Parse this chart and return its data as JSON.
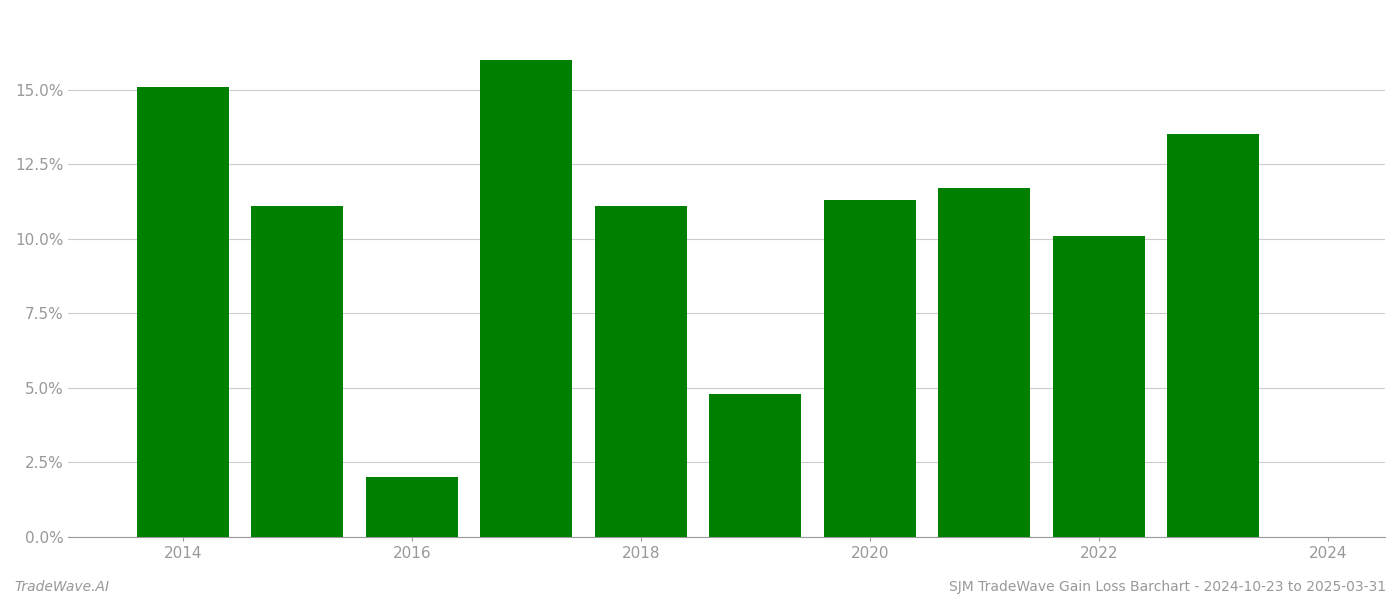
{
  "years": [
    2014,
    2015,
    2016,
    2017,
    2018,
    2019,
    2020,
    2021,
    2022,
    2023
  ],
  "values": [
    0.151,
    0.111,
    0.02,
    0.16,
    0.111,
    0.048,
    0.113,
    0.117,
    0.101,
    0.135
  ],
  "bar_color": "#008000",
  "background_color": "#ffffff",
  "grid_color": "#cccccc",
  "axis_color": "#999999",
  "footer_left": "TradeWave.AI",
  "footer_right": "SJM TradeWave Gain Loss Barchart - 2024-10-23 to 2025-03-31",
  "ylim": [
    0,
    0.175
  ],
  "yticks": [
    0.0,
    0.025,
    0.05,
    0.075,
    0.1,
    0.125,
    0.15
  ],
  "footer_fontsize": 10,
  "tick_fontsize": 11,
  "bar_width": 0.8,
  "xlim_min": 2013.0,
  "xlim_max": 2024.5,
  "xticks": [
    2014,
    2016,
    2018,
    2020,
    2022,
    2024
  ],
  "xtick_labels": [
    "2014",
    "2016",
    "2018",
    "2020",
    "2022",
    "2024"
  ]
}
